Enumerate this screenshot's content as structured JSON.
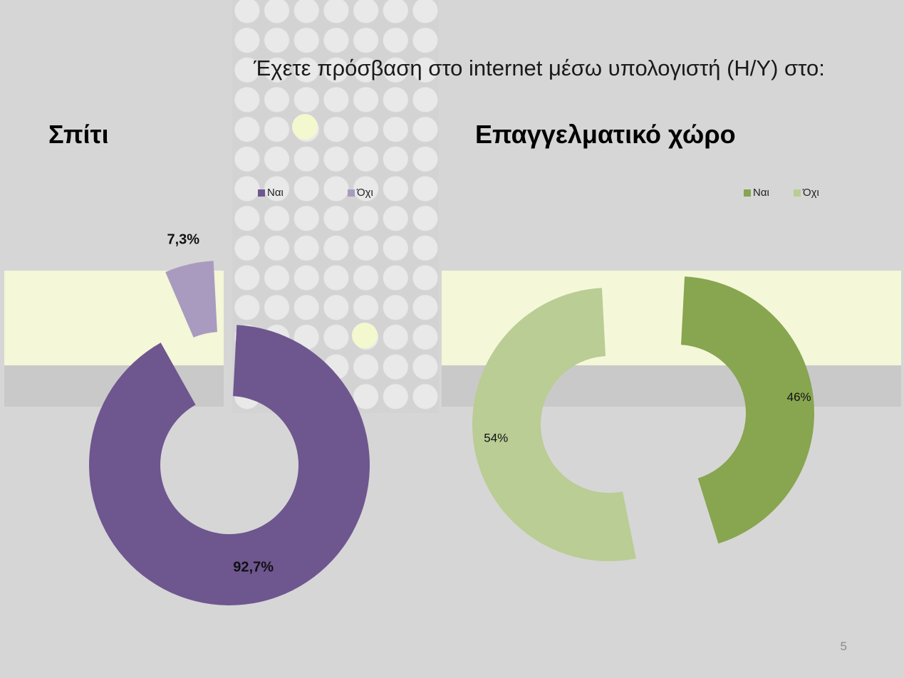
{
  "slide": {
    "title": "Έχετε πρόσβαση στο internet μέσω υπολογιστή (Η/Υ) στο:",
    "page_number": "5"
  },
  "chart_data": [
    {
      "type": "donut",
      "title": "Σπίτι",
      "categories": [
        "Ναι",
        "Όχι"
      ],
      "values": [
        92.7,
        7.3
      ],
      "labels": [
        "92,7%",
        "7,3%"
      ],
      "colors": [
        "#6e568f",
        "#a99bbf"
      ],
      "legend": "top",
      "exploded": "Όχι"
    },
    {
      "type": "donut",
      "title": "Επαγγελματικό χώρο",
      "categories": [
        "Ναι",
        "Όχι"
      ],
      "values": [
        46,
        54
      ],
      "labels": [
        "46%",
        "54%"
      ],
      "colors": [
        "#88a54f",
        "#b9cd94"
      ],
      "legend": "top-right",
      "exploded": "both"
    }
  ]
}
